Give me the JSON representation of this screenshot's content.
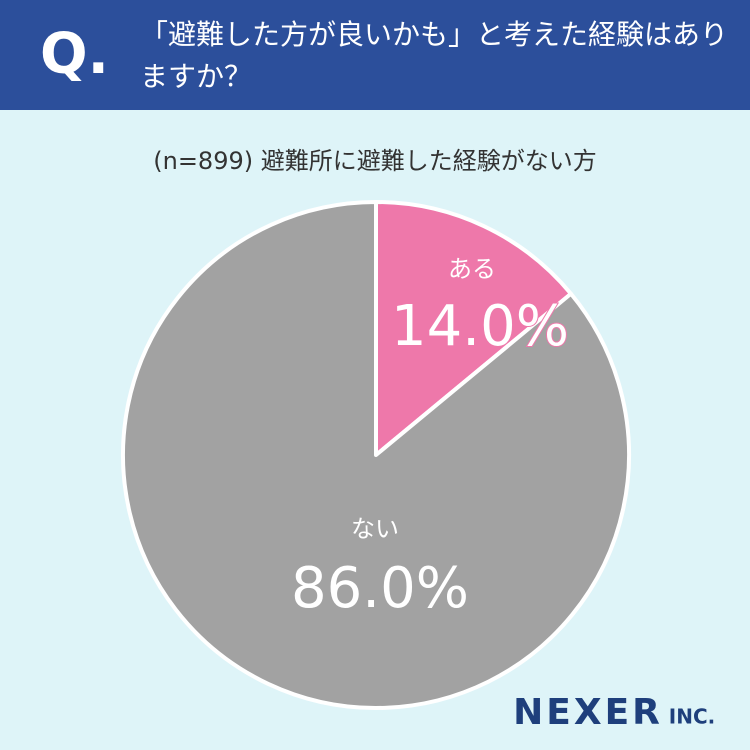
{
  "header": {
    "mark": "Q.",
    "question": "「避難した方が良いかも」と考えた経験はありますか？"
  },
  "chart_data": {
    "type": "pie",
    "subtitle": "(n=899) 避難所に避難した経験がない方",
    "categories": [
      "ある",
      "ない"
    ],
    "values": [
      14.0,
      86.0
    ],
    "value_labels": [
      "14.0%",
      "86.0%"
    ],
    "colors": [
      "#ee78aa",
      "#a2a2a2"
    ]
  },
  "footer": {
    "logo": "NEXER",
    "logo_suffix": "INC."
  }
}
